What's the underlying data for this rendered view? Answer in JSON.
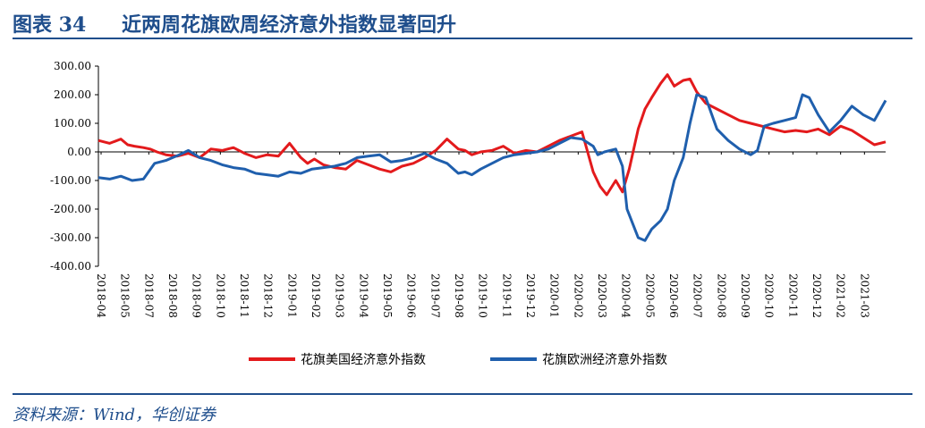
{
  "header": {
    "figure_label": "图表 34",
    "title": "近两周花旗欧周经济意外指数显著回升"
  },
  "footer": {
    "source": "资料来源：Wind，华创证券"
  },
  "chart_data": {
    "type": "line",
    "title": "近两周花旗欧周经济意外指数显著回升",
    "xlabel": "",
    "ylabel": "",
    "ylim": [
      -400,
      300
    ],
    "y_ticks": [
      "300.00",
      "200.00",
      "100.00",
      "0.00",
      "-100.00",
      "-200.00",
      "-300.00",
      "-400.00"
    ],
    "x_ticks": [
      "2018-04",
      "2018-05",
      "2018-07",
      "2018-08",
      "2018-09",
      "2018-10",
      "2018-11",
      "2018-12",
      "2019-01",
      "2019-02",
      "2019-03",
      "2019-04",
      "2019-05",
      "2019-06",
      "2019-07",
      "2019-08",
      "2019-10",
      "2019-11",
      "2019-12",
      "2020-01",
      "2020-02",
      "2020-03",
      "2020-04",
      "2020-05",
      "2020-06",
      "2020-07",
      "2020-08",
      "2020-09",
      "2020-10",
      "2020-11",
      "2020-12",
      "2021-02",
      "2021-03"
    ],
    "x_index_range": [
      0,
      35
    ],
    "legend_position": "bottom",
    "series": [
      {
        "name": "花旗美国经济意外指数",
        "color": "#e31a1c",
        "x": [
          0,
          0.5,
          1,
          1.3,
          1.6,
          2,
          2.3,
          2.6,
          3,
          3.5,
          4,
          4.5,
          5,
          5.5,
          6,
          6.5,
          7,
          7.5,
          8,
          8.5,
          9,
          9.3,
          9.6,
          10,
          10.5,
          11,
          11.5,
          12,
          12.5,
          13,
          13.5,
          14,
          14.5,
          15,
          15.5,
          16,
          16.3,
          16.6,
          17,
          17.5,
          18,
          18.5,
          19,
          19.5,
          20,
          20.5,
          21,
          21.5,
          22,
          22.3,
          22.6,
          23,
          23.3,
          23.6,
          24,
          24.3,
          24.6,
          25,
          25.3,
          25.6,
          26,
          26.3,
          26.6,
          27,
          27.5,
          28,
          28.5,
          29,
          29.5,
          30,
          30.5,
          31,
          31.5,
          32,
          32.5,
          33,
          33.5,
          34,
          34.5,
          35
        ],
        "values": [
          40,
          30,
          45,
          25,
          20,
          15,
          10,
          0,
          -10,
          -15,
          -5,
          -20,
          10,
          5,
          15,
          -5,
          -20,
          -10,
          -15,
          30,
          -20,
          -40,
          -25,
          -45,
          -55,
          -60,
          -30,
          -45,
          -60,
          -70,
          -50,
          -40,
          -20,
          5,
          45,
          10,
          5,
          -10,
          0,
          5,
          20,
          -5,
          5,
          0,
          20,
          40,
          55,
          70,
          -70,
          -120,
          -150,
          -100,
          -140,
          -60,
          80,
          150,
          190,
          240,
          270,
          230,
          250,
          255,
          210,
          170,
          150,
          130,
          110,
          100,
          90,
          80,
          70,
          75,
          70,
          80,
          60,
          90,
          75,
          50,
          25,
          35
        ]
      },
      {
        "name": "花旗欧洲经济意外指数",
        "color": "#1f5fad",
        "x": [
          0,
          0.5,
          1,
          1.5,
          2,
          2.5,
          3,
          3.3,
          3.6,
          4,
          4.5,
          5,
          5.5,
          6,
          6.5,
          7,
          7.5,
          8,
          8.5,
          9,
          9.5,
          10,
          10.5,
          11,
          11.5,
          12,
          12.5,
          13,
          13.5,
          14,
          14.5,
          15,
          15.5,
          16,
          16.3,
          16.6,
          17,
          17.5,
          18,
          18.5,
          19,
          19.5,
          20,
          20.5,
          21,
          21.5,
          22,
          22.2,
          22.5,
          23,
          23.3,
          23.5,
          23.8,
          24,
          24.3,
          24.6,
          25,
          25.3,
          25.6,
          26,
          26.3,
          26.6,
          27,
          27.5,
          28,
          28.5,
          29,
          29.3,
          29.6,
          30,
          30.5,
          31,
          31.3,
          31.6,
          32,
          32.5,
          33,
          33.5,
          34,
          34.5,
          35
        ],
        "values": [
          -90,
          -95,
          -85,
          -100,
          -95,
          -40,
          -30,
          -20,
          -10,
          5,
          -20,
          -30,
          -45,
          -55,
          -60,
          -75,
          -80,
          -85,
          -70,
          -75,
          -60,
          -55,
          -50,
          -40,
          -20,
          -15,
          -10,
          -35,
          -30,
          -20,
          -5,
          -25,
          -40,
          -75,
          -70,
          -80,
          -60,
          -40,
          -20,
          -10,
          -5,
          0,
          10,
          30,
          50,
          45,
          20,
          -10,
          0,
          10,
          -50,
          -200,
          -260,
          -300,
          -310,
          -270,
          -240,
          -200,
          -100,
          -20,
          100,
          200,
          190,
          80,
          40,
          10,
          -10,
          5,
          90,
          100,
          110,
          120,
          200,
          190,
          130,
          70,
          110,
          160,
          130,
          110,
          180
        ]
      }
    ]
  }
}
